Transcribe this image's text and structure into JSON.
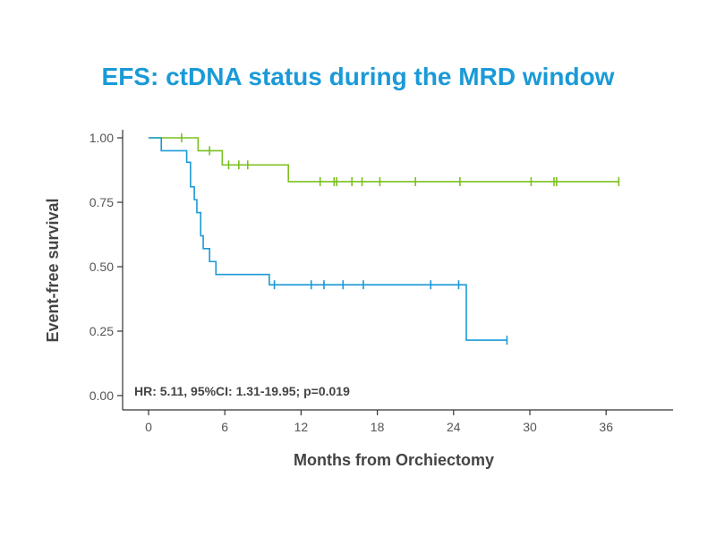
{
  "chart_data": {
    "type": "line",
    "title": "EFS: ctDNA status during the MRD window",
    "xlabel": "Months from Orchiectomy",
    "ylabel": "Event-free survival",
    "xlim": [
      -2,
      39
    ],
    "ylim": [
      0,
      1.0
    ],
    "xticks": [
      "0",
      "6",
      "12",
      "18",
      "24",
      "30",
      "36"
    ],
    "yticks": [
      "0.00",
      "0.25",
      "0.50",
      "0.75",
      "1.00"
    ],
    "grid": false,
    "annotation": "HR: 5.11, 95%CI: 1.31-19.95; p=0.019",
    "colors": {
      "green": "#7ac01e",
      "blue": "#1a9ad7"
    },
    "series": [
      {
        "color": "#7ac01e",
        "step_x": [
          0,
          3.9,
          5.8,
          11.0,
          37.0
        ],
        "step_y": [
          1.0,
          0.95,
          0.895,
          0.83,
          0.83
        ],
        "censor_x": [
          2.6,
          4.8,
          6.3,
          7.1,
          7.8,
          13.5,
          14.6,
          14.8,
          16.0,
          16.8,
          18.2,
          21.0,
          24.5,
          30.1,
          31.9,
          32.1,
          37.0
        ],
        "censor_y": [
          1.0,
          0.95,
          0.895,
          0.895,
          0.895,
          0.83,
          0.83,
          0.83,
          0.83,
          0.83,
          0.83,
          0.83,
          0.83,
          0.83,
          0.83,
          0.83,
          0.83
        ]
      },
      {
        "color": "#1a9ad7",
        "step_x": [
          0,
          1.0,
          3.0,
          3.3,
          3.6,
          3.8,
          4.1,
          4.3,
          4.8,
          5.3,
          9.5,
          25.0,
          28.2
        ],
        "step_y": [
          1.0,
          0.95,
          0.905,
          0.81,
          0.76,
          0.71,
          0.62,
          0.57,
          0.52,
          0.47,
          0.43,
          0.215,
          0.215
        ],
        "censor_x": [
          9.9,
          12.8,
          13.8,
          15.3,
          16.9,
          22.2,
          24.4,
          28.2
        ],
        "censor_y": [
          0.43,
          0.43,
          0.43,
          0.43,
          0.43,
          0.43,
          0.43,
          0.215
        ]
      }
    ]
  }
}
